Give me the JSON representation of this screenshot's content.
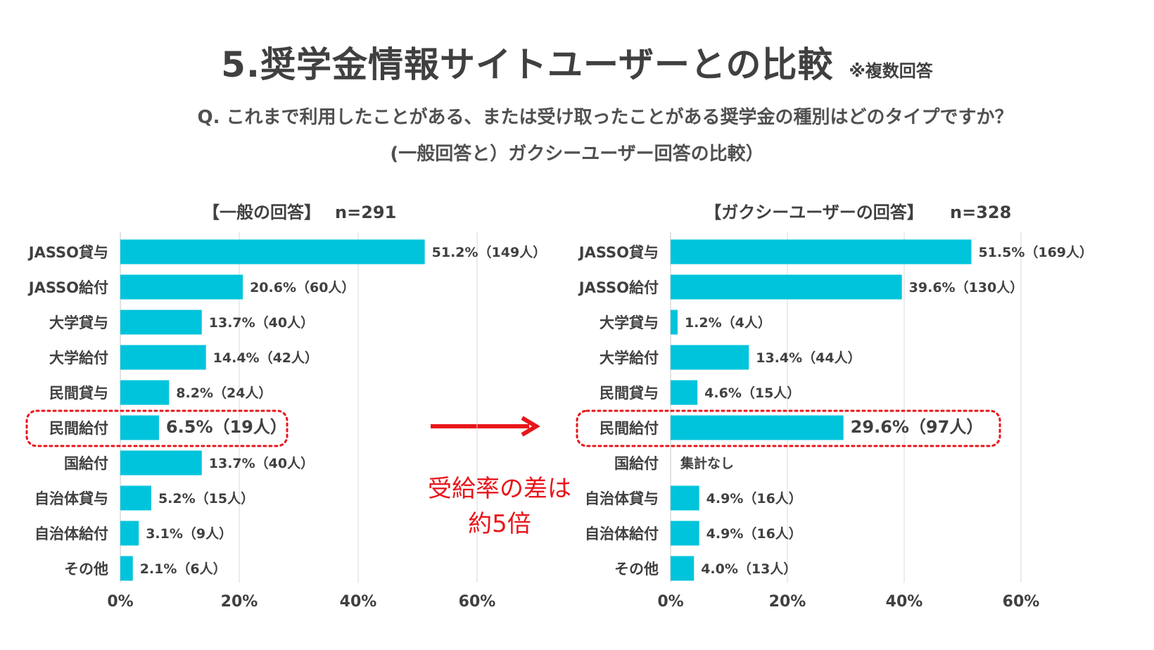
{
  "title": "5.奨学金情報サイトユーザーとの比較",
  "title_note": "※複数回答",
  "question_line1": "Q. これまで利用したことがある、または受け取ったことがある奨学金の種別はどのタイプですか？",
  "question_line2": "(一般回答と）ガクシーユーザー回答の比較）",
  "callout_line1": "受給率の差は",
  "callout_line2": "約5倍",
  "colors": {
    "bar": "#00c4dc",
    "highlight": "#e8151b",
    "grid": "#d9d9d9",
    "text": "#404040"
  },
  "chart_data": [
    {
      "type": "bar",
      "orientation": "horizontal",
      "title": "【一般の回答】",
      "n_label": "n=291",
      "categories": [
        "JASSO貸与",
        "JASSO給付",
        "大学貸与",
        "大学給付",
        "民間貸与",
        "民間給付",
        "国給付",
        "自治体貸与",
        "自治体給付",
        "その他"
      ],
      "values": [
        51.2,
        20.6,
        13.7,
        14.4,
        8.2,
        6.5,
        13.7,
        5.2,
        3.1,
        2.1
      ],
      "data_labels": [
        "51.2%（149人）",
        "20.6%（60人）",
        "13.7%（40人）",
        "14.4%（42人）",
        "8.2%（24人）",
        "6.5%（19人）",
        "13.7%（40人）",
        "5.2%（15人）",
        "3.1%（9人）",
        "2.1%（6人）"
      ],
      "highlight_category": "民間給付",
      "xlim": [
        0,
        60
      ],
      "xticks": [
        "0%",
        "20%",
        "40%",
        "60%"
      ],
      "grid": true
    },
    {
      "type": "bar",
      "orientation": "horizontal",
      "title": "【ガクシーユーザーの回答】",
      "n_label": "n=328",
      "categories": [
        "JASSO貸与",
        "JASSO給付",
        "大学貸与",
        "大学給付",
        "民間貸与",
        "民間給付",
        "国給付",
        "自治体貸与",
        "自治体給付",
        "その他"
      ],
      "values": [
        51.5,
        39.6,
        1.2,
        13.4,
        4.6,
        29.6,
        null,
        4.9,
        4.9,
        4.0
      ],
      "data_labels": [
        "51.5%（169人）",
        "39.6%（130人）",
        "1.2%（4人）",
        "13.4%（44人）",
        "4.6%（15人）",
        "29.6%（97人）",
        "集計なし",
        "4.9%（16人）",
        "4.9%（16人）",
        "4.0%（13人）"
      ],
      "highlight_category": "民間給付",
      "xlim": [
        0,
        60
      ],
      "xticks": [
        "0%",
        "20%",
        "40%",
        "60%"
      ],
      "grid": true
    }
  ]
}
